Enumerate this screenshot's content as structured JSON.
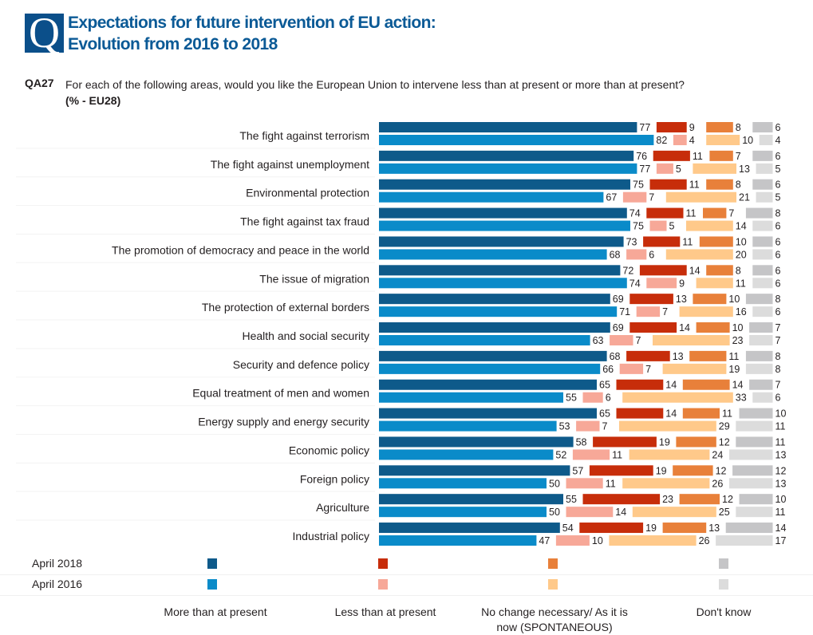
{
  "header": {
    "badge": "Q",
    "title_line1": "Expectations for future intervention of EU action:",
    "title_line2": "Evolution from 2016 to 2018",
    "question_code": "QA27",
    "question_text": "For each of the following areas, would you like the European Union to intervene less than at present or more than at present?",
    "base": "(% - EU28)"
  },
  "colors": {
    "more_2018": "#0e5a8a",
    "more_2016": "#0a8bc9",
    "less_2018": "#c72d0a",
    "less_2016": "#f7a898",
    "nochange_2018": "#e8803a",
    "nochange_2016": "#ffc98a",
    "dk_2018": "#c5c5c7",
    "dk_2016": "#dcdcdc"
  },
  "legend": {
    "years": [
      "April 2018",
      "April 2016"
    ],
    "categories": [
      "More than at present",
      "Less than at present",
      "No change necessary/ As it is now (SPONTANEOUS)",
      "Don't know"
    ],
    "nochange_line1": "No change necessary/ As it is",
    "nochange_line2": "now (SPONTANEOUS)"
  },
  "chart_data": {
    "type": "bar",
    "orientation": "horizontal-stacked-with-gaps",
    "title": "Expectations for future intervention of EU action: Evolution from 2016 to 2018",
    "unit": "%",
    "series_names": [
      "More than at present",
      "Less than at present",
      "No change necessary/ As it is now (SPONTANEOUS)",
      "Don't know"
    ],
    "periods": [
      "April 2018",
      "April 2016"
    ],
    "categories": [
      "The fight against terrorism",
      "The fight against unemployment",
      "Environmental protection",
      "The fight against tax fraud",
      "The promotion of democracy and peace in the world",
      "The issue of migration",
      "The protection of external borders",
      "Health and social security",
      "Security and defence policy",
      "Equal treatment of men and women",
      "Energy supply and energy security",
      "Economic policy",
      "Foreign policy",
      "Agriculture",
      "Industrial policy"
    ],
    "values_2018": [
      [
        77,
        9,
        8,
        6
      ],
      [
        76,
        11,
        7,
        6
      ],
      [
        75,
        11,
        8,
        6
      ],
      [
        74,
        11,
        7,
        8
      ],
      [
        73,
        11,
        10,
        6
      ],
      [
        72,
        14,
        8,
        6
      ],
      [
        69,
        13,
        10,
        8
      ],
      [
        69,
        14,
        10,
        7
      ],
      [
        68,
        13,
        11,
        8
      ],
      [
        65,
        14,
        14,
        7
      ],
      [
        65,
        14,
        11,
        10
      ],
      [
        58,
        19,
        12,
        11
      ],
      [
        57,
        19,
        12,
        12
      ],
      [
        55,
        23,
        12,
        10
      ],
      [
        54,
        19,
        13,
        14
      ]
    ],
    "values_2016": [
      [
        82,
        4,
        10,
        4
      ],
      [
        77,
        5,
        13,
        5
      ],
      [
        67,
        7,
        21,
        5
      ],
      [
        75,
        5,
        14,
        6
      ],
      [
        68,
        6,
        20,
        6
      ],
      [
        74,
        9,
        11,
        6
      ],
      [
        71,
        7,
        16,
        6
      ],
      [
        63,
        7,
        23,
        7
      ],
      [
        66,
        7,
        19,
        8
      ],
      [
        55,
        6,
        33,
        6
      ],
      [
        53,
        7,
        29,
        11
      ],
      [
        52,
        11,
        24,
        13
      ],
      [
        50,
        11,
        26,
        13
      ],
      [
        50,
        14,
        25,
        11
      ],
      [
        47,
        10,
        26,
        17
      ]
    ]
  }
}
